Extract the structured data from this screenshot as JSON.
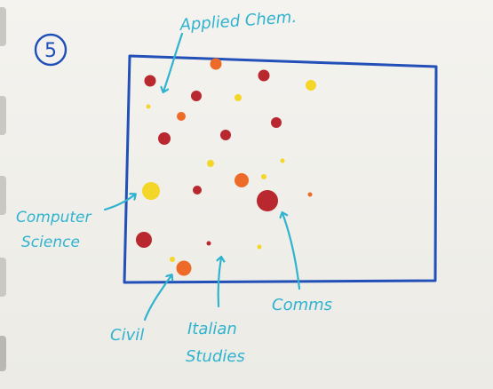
{
  "figure": {
    "number_label": "5",
    "colors": {
      "frame": "#2350b8",
      "annotation": "#2fb3cf",
      "number": "#1f4fb8",
      "red": "#b8282e",
      "orange": "#ee6a28",
      "yellow": "#f3d628"
    },
    "labels": {
      "applied_chem": "Applied Chem.",
      "computer_science_line1": "Computer",
      "computer_science_line2": "Science",
      "civil": "Civil",
      "italian_line1": "Italian",
      "italian_line2": "Studies",
      "comms": "Comms"
    }
  }
}
